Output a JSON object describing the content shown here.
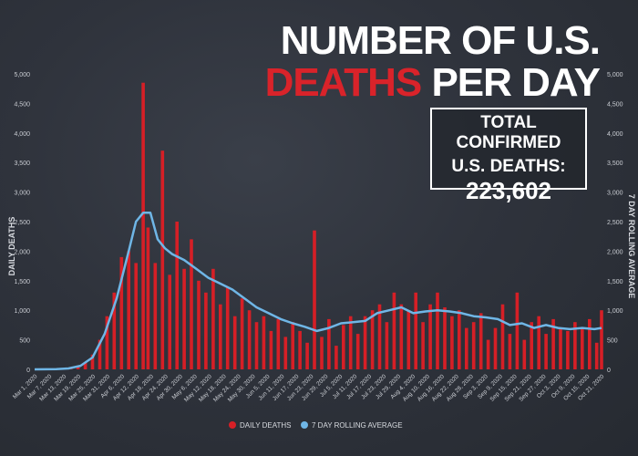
{
  "header": {
    "title_line1": "NUMBER OF U.S.",
    "title_line2_red": "DEATHS",
    "title_line2_rest": "PER DAY"
  },
  "total_box": {
    "label_line1": "TOTAL CONFIRMED",
    "label_line2": "U.S. DEATHS:",
    "value": "223,602"
  },
  "legend": {
    "daily_label": "DAILY DEATHS",
    "avg_label": "7 DAY ROLLING AVERAGE"
  },
  "colors": {
    "bar": "#d61f26",
    "line": "#6fb6e6",
    "axis_text": "#c9ccd2",
    "background": "#2c3039"
  },
  "chart_data": {
    "type": "bar",
    "left_axis_label": "DAILY DEATHS",
    "right_axis_label": "7 DAY ROLLING AVERAGE",
    "ylim": [
      0,
      5000
    ],
    "y_ticks": [
      0,
      500,
      1000,
      1500,
      2000,
      2500,
      3000,
      3500,
      4000,
      4500,
      5000
    ],
    "y_tick_labels": [
      "0",
      "500",
      "1,000",
      "1,500",
      "2,000",
      "2,500",
      "3,000",
      "3,500",
      "4,000",
      "4,500",
      "5,000"
    ],
    "legend_position": "bottom-center",
    "x_tick_labels": [
      "Mar 1, 2020",
      "Mar 7, 2020",
      "Mar 13, 2020",
      "Mar 19, 2020",
      "Mar 25, 2020",
      "Mar 31, 2020",
      "Apr 6, 2020",
      "Apr 12, 2020",
      "Apr 18, 2020",
      "Apr 24, 2020",
      "Apr 30, 2020",
      "May 6, 2020",
      "May 12, 2020",
      "May 18, 2020",
      "May 24, 2020",
      "May 30, 2020",
      "Jun 5, 2020",
      "Jun 11, 2020",
      "Jun 17, 2020",
      "Jun 23, 2020",
      "Jun 29, 2020",
      "Jul 5, 2020",
      "Jul 11, 2020",
      "Jul 17, 2020",
      "Jul 23, 2020",
      "Jul 29, 2020",
      "Aug 4, 2020",
      "Aug 10, 2020",
      "Aug 16, 2020",
      "Aug 22, 2020",
      "Aug 28, 2020",
      "Sep 3, 2020",
      "Sep 9, 2020",
      "Sep 15, 2020",
      "Sep 21, 2020",
      "Sep 27, 2020",
      "Oct 3, 2020",
      "Oct 9, 2020",
      "Oct 15, 2020",
      "Oct 21, 2020"
    ],
    "series": [
      {
        "name": "DAILY DEATHS",
        "type": "bar",
        "x": [
          "2020-03-01",
          "2020-03-06",
          "2020-03-11",
          "2020-03-16",
          "2020-03-19",
          "2020-03-22",
          "2020-03-25",
          "2020-03-28",
          "2020-03-31",
          "2020-04-03",
          "2020-04-06",
          "2020-04-09",
          "2020-04-12",
          "2020-04-15",
          "2020-04-17",
          "2020-04-20",
          "2020-04-23",
          "2020-04-26",
          "2020-04-29",
          "2020-05-02",
          "2020-05-05",
          "2020-05-08",
          "2020-05-11",
          "2020-05-14",
          "2020-05-17",
          "2020-05-20",
          "2020-05-23",
          "2020-05-26",
          "2020-05-29",
          "2020-06-01",
          "2020-06-04",
          "2020-06-07",
          "2020-06-10",
          "2020-06-13",
          "2020-06-16",
          "2020-06-19",
          "2020-06-22",
          "2020-06-25",
          "2020-06-28",
          "2020-07-01",
          "2020-07-04",
          "2020-07-07",
          "2020-07-10",
          "2020-07-13",
          "2020-07-16",
          "2020-07-19",
          "2020-07-22",
          "2020-07-25",
          "2020-07-28",
          "2020-07-31",
          "2020-08-03",
          "2020-08-06",
          "2020-08-09",
          "2020-08-12",
          "2020-08-15",
          "2020-08-18",
          "2020-08-21",
          "2020-08-24",
          "2020-08-27",
          "2020-08-30",
          "2020-09-02",
          "2020-09-05",
          "2020-09-08",
          "2020-09-11",
          "2020-09-14",
          "2020-09-17",
          "2020-09-20",
          "2020-09-23",
          "2020-09-26",
          "2020-09-29",
          "2020-10-02",
          "2020-10-05",
          "2020-10-08",
          "2020-10-11",
          "2020-10-14",
          "2020-10-17",
          "2020-10-20",
          "2020-10-22"
        ],
        "values": [
          0,
          2,
          5,
          20,
          60,
          120,
          250,
          500,
          900,
          1300,
          1900,
          2000,
          1800,
          4850,
          2400,
          1800,
          3700,
          1600,
          2500,
          1700,
          2200,
          1500,
          1300,
          1700,
          1100,
          1400,
          900,
          1200,
          1000,
          800,
          900,
          650,
          850,
          550,
          800,
          650,
          450,
          2350,
          550,
          850,
          400,
          750,
          900,
          600,
          900,
          1000,
          1100,
          800,
          1300,
          1100,
          1000,
          1300,
          800,
          1100,
          1300,
          1050,
          900,
          1000,
          700,
          800,
          950,
          500,
          700,
          1100,
          600,
          1300,
          500,
          800,
          900,
          600,
          850,
          700,
          650,
          800,
          700,
          850,
          450,
          1000
        ]
      },
      {
        "name": "7 DAY ROLLING AVERAGE",
        "type": "line",
        "x": [
          "2020-03-01",
          "2020-03-10",
          "2020-03-15",
          "2020-03-20",
          "2020-03-25",
          "2020-03-30",
          "2020-04-04",
          "2020-04-09",
          "2020-04-12",
          "2020-04-15",
          "2020-04-18",
          "2020-04-21",
          "2020-04-24",
          "2020-04-27",
          "2020-05-02",
          "2020-05-07",
          "2020-05-12",
          "2020-05-17",
          "2020-05-22",
          "2020-05-27",
          "2020-06-01",
          "2020-06-06",
          "2020-06-11",
          "2020-06-16",
          "2020-06-21",
          "2020-06-26",
          "2020-07-01",
          "2020-07-06",
          "2020-07-11",
          "2020-07-16",
          "2020-07-21",
          "2020-07-26",
          "2020-07-31",
          "2020-08-05",
          "2020-08-10",
          "2020-08-15",
          "2020-08-20",
          "2020-08-25",
          "2020-08-30",
          "2020-09-04",
          "2020-09-09",
          "2020-09-14",
          "2020-09-19",
          "2020-09-24",
          "2020-09-29",
          "2020-10-04",
          "2020-10-09",
          "2020-10-14",
          "2020-10-19",
          "2020-10-22"
        ],
        "values": [
          0,
          5,
          15,
          60,
          200,
          600,
          1200,
          2000,
          2500,
          2650,
          2650,
          2200,
          2050,
          1950,
          1850,
          1700,
          1550,
          1450,
          1350,
          1200,
          1050,
          950,
          850,
          780,
          720,
          650,
          700,
          780,
          800,
          820,
          950,
          1000,
          1050,
          950,
          980,
          1000,
          980,
          950,
          900,
          880,
          850,
          750,
          780,
          700,
          750,
          700,
          680,
          700,
          680,
          700
        ]
      }
    ]
  }
}
